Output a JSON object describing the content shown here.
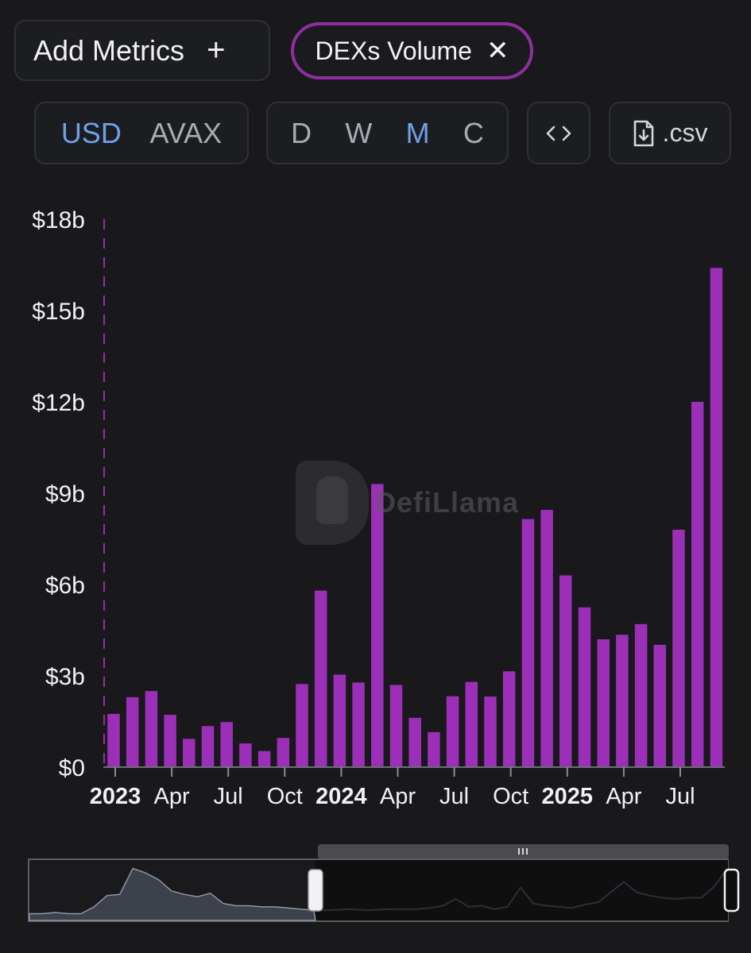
{
  "header": {
    "add_metrics_label": "Add Metrics",
    "add_icon": "plus-icon",
    "metric_chip_label": "DEXs Volume",
    "remove_icon": "close-icon"
  },
  "toolbar": {
    "currency_options": [
      "USD",
      "AVAX"
    ],
    "currency_selected": "USD",
    "period_options": [
      "D",
      "W",
      "M",
      "C"
    ],
    "period_selected": "M",
    "embed_icon": "code-brackets-icon",
    "csv_icon": "file-download-icon",
    "csv_label": ".csv"
  },
  "watermark": "DefiLlama",
  "colors": {
    "bar": "#9b2fb8",
    "active_toggle": "#6ea0ea",
    "chip_border": "#8e2f9f",
    "background": "#19191b"
  },
  "chart_data": {
    "type": "bar",
    "series": [
      {
        "values": [
          1.75,
          2.3,
          2.5,
          1.72,
          0.93,
          1.35,
          1.48,
          0.78,
          0.53,
          0.96,
          2.73,
          5.8,
          3.04,
          2.78,
          9.3,
          2.7,
          1.62,
          1.15,
          2.33,
          2.8,
          2.32,
          3.15,
          8.15,
          8.45,
          6.3,
          5.25,
          4.2,
          4.35,
          4.7,
          4.02,
          7.8,
          12.0,
          16.4
        ]
      }
    ],
    "categories": [
      "2023-01",
      "2023-02",
      "2023-03",
      "2023-04",
      "2023-05",
      "2023-06",
      "2023-07",
      "2023-08",
      "2023-09",
      "2023-10",
      "2023-11",
      "2023-12",
      "2024-01",
      "2024-02",
      "2024-03",
      "2024-04",
      "2024-05",
      "2024-06",
      "2024-07",
      "2024-08",
      "2024-09",
      "2024-10",
      "2024-11",
      "2024-12",
      "2025-01",
      "2025-02",
      "2025-03",
      "2025-04",
      "2025-05",
      "2025-06",
      "2025-07",
      "2025-08",
      "2025-09"
    ],
    "unit": "billion USD",
    "ylim": [
      0,
      18
    ],
    "y_ticks": [
      "$0",
      "$3b",
      "$6b",
      "$9b",
      "$12b",
      "$15b",
      "$18b"
    ],
    "x_ticks": [
      {
        "label": "2023",
        "bold": true,
        "month_index": 0
      },
      {
        "label": "Apr",
        "bold": false,
        "month_index": 3
      },
      {
        "label": "Jul",
        "bold": false,
        "month_index": 6
      },
      {
        "label": "Oct",
        "bold": false,
        "month_index": 9
      },
      {
        "label": "2024",
        "bold": true,
        "month_index": 12
      },
      {
        "label": "Apr",
        "bold": false,
        "month_index": 15
      },
      {
        "label": "Jul",
        "bold": false,
        "month_index": 18
      },
      {
        "label": "Oct",
        "bold": false,
        "month_index": 21
      },
      {
        "label": "2025",
        "bold": true,
        "month_index": 24
      },
      {
        "label": "Apr",
        "bold": false,
        "month_index": 27
      },
      {
        "label": "Jul",
        "bold": false,
        "month_index": 30
      }
    ],
    "grid": false
  },
  "brush": {
    "overview_values": [
      0.6,
      0.6,
      0.7,
      0.6,
      0.6,
      1.2,
      2.2,
      2.3,
      4.6,
      4.2,
      3.6,
      2.6,
      2.3,
      2.1,
      2.4,
      1.5,
      1.3,
      1.3,
      1.2,
      1.2,
      1.1,
      1.0,
      0.9,
      0.9,
      0.95,
      1.0,
      0.9,
      0.95,
      1.0,
      1.0,
      1.0,
      1.1,
      1.3,
      1.9,
      1.2,
      1.3,
      1.0,
      1.2,
      2.9,
      1.5,
      1.3,
      1.2,
      1.1,
      1.4,
      1.6,
      2.5,
      3.4,
      2.5,
      2.2,
      2.0,
      1.9,
      2.0,
      2.0,
      3.0,
      4.6
    ],
    "selection_start_fraction": 0.41,
    "selection_end_fraction": 1.0
  }
}
